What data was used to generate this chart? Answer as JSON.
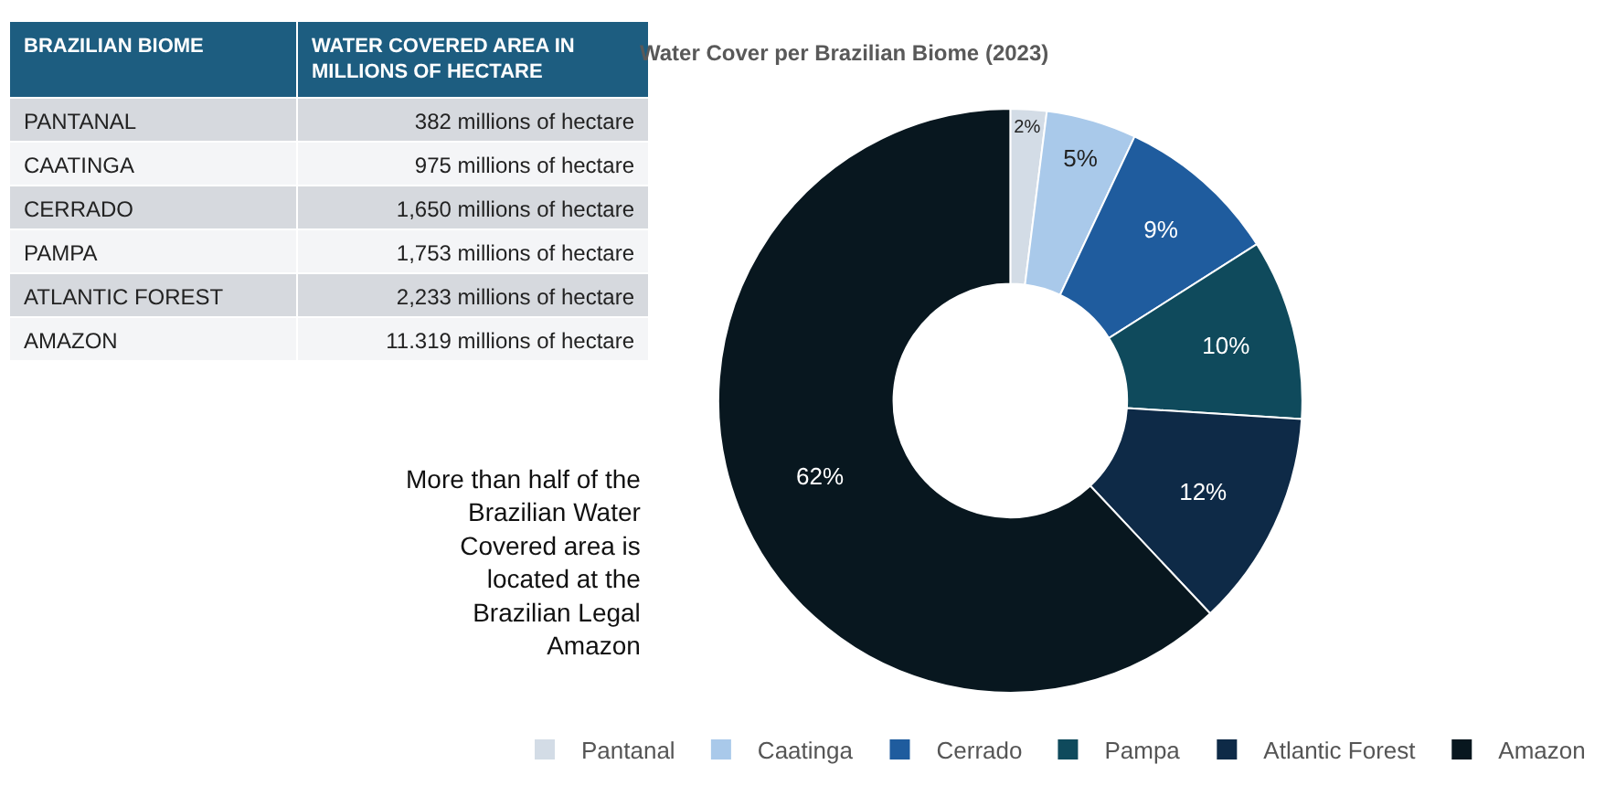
{
  "chart_data": [
    {
      "type": "other",
      "ylabel": "BRAZILIAN BIOME",
      "xlabel": "WATER COVERED AREA IN MILLIONS OF HECTARE",
      "categories": [
        "PANTANAL",
        "CAATINGA",
        "CERRADO",
        "PAMPA",
        "ATLANTIC FOREST",
        "AMAZON"
      ],
      "value_labels": [
        "382 millions of hectare",
        "975 millions of hectare",
        "1,650 millions of hectare",
        "1,753 millions of hectare",
        "2,233 millions of hectare",
        "11.319 millions of hectare"
      ]
    },
    {
      "type": "donut",
      "title": "Water Cover per Brazilian Biome (2023)",
      "categories": [
        "Pantanal",
        "Caatinga",
        "Cerrado",
        "Pampa",
        "Atlantic Forest",
        "Amazon"
      ],
      "values": [
        2,
        5,
        9,
        10,
        12,
        62
      ],
      "value_labels": [
        "2%",
        "5%",
        "9%",
        "10%",
        "12%",
        "62%"
      ],
      "colors": [
        "#d3dce6",
        "#a9c9ea",
        "#1f5c9e",
        "#0f4a5c",
        "#0e2a47",
        "#08171f"
      ],
      "legend": "bottom",
      "annotations": [
        "More than half of the Brazilian Water Covered area is located at the Brazilian Legal Amazon"
      ]
    }
  ]
}
